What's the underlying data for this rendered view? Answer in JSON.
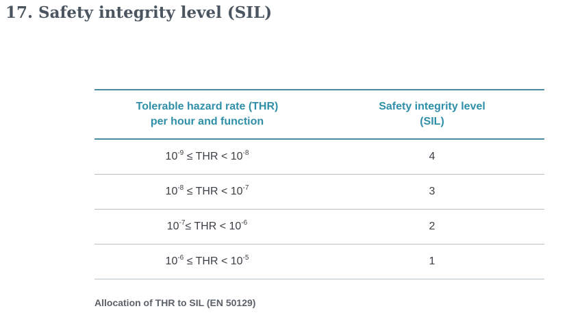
{
  "page": {
    "title": "17. Safety integrity level (SIL)"
  },
  "table": {
    "header": {
      "col1_line1": "Tolerable hazard rate (THR)",
      "col1_line2": "per hour and function",
      "col2_line1": "Safety integrity level",
      "col2_line2": "(SIL)"
    },
    "rows": [
      {
        "lower_base": "10",
        "lower_exp": "-9",
        "op_left": " ≤ THR < ",
        "upper_base": "10",
        "upper_exp": "-8",
        "sil": "4"
      },
      {
        "lower_base": "10",
        "lower_exp": "-8",
        "op_left": " ≤ THR < ",
        "upper_base": "10",
        "upper_exp": "-7",
        "sil": "3"
      },
      {
        "lower_base": "10",
        "lower_exp": "-7",
        "op_left": "≤ THR < ",
        "upper_base": "10",
        "upper_exp": "-6",
        "sil": "2"
      },
      {
        "lower_base": "10",
        "lower_exp": "-6",
        "op_left": " ≤ THR < ",
        "upper_base": "10",
        "upper_exp": "-5",
        "sil": "1"
      }
    ]
  },
  "caption": "Allocation of THR to SIL (EN 50129)",
  "colors": {
    "title": "#4b5560",
    "header_text": "#2f8fa8",
    "header_rule": "#4a8aa3",
    "row_rule": "#b7c0c6",
    "body_text": "#3a3f44",
    "caption": "#5a6168"
  }
}
